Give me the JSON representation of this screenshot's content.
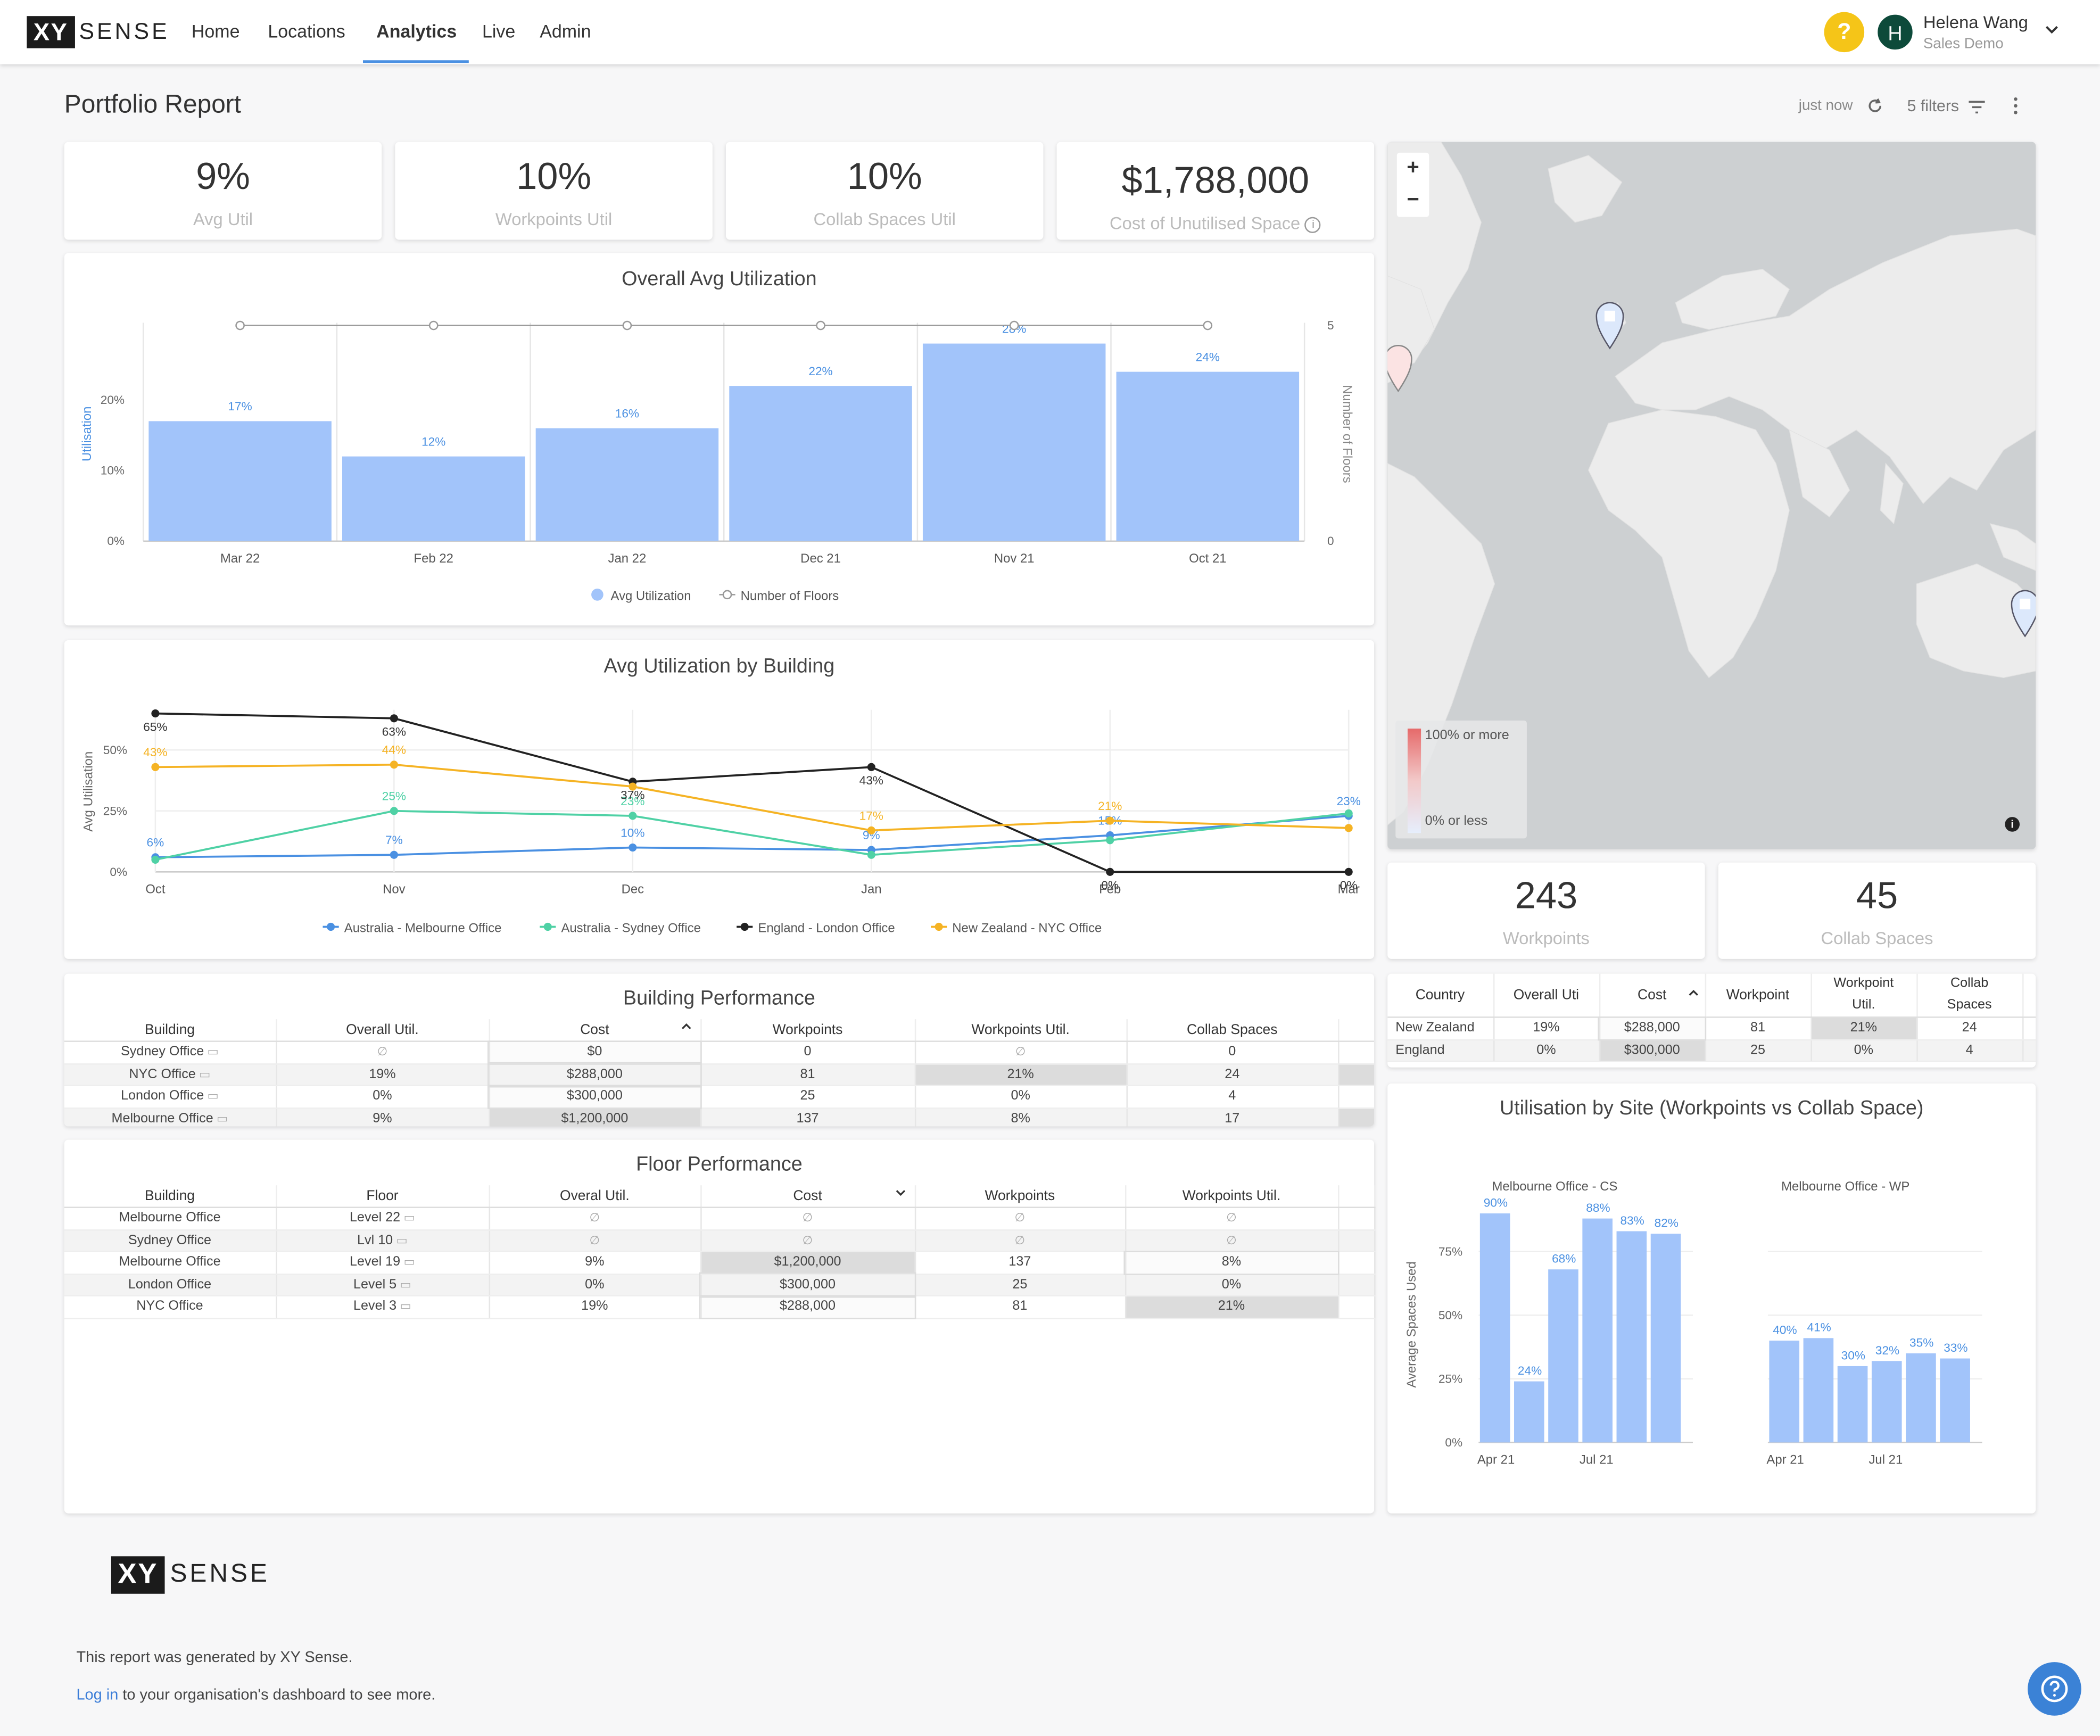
{
  "app": {
    "logo_mark": "XY",
    "logo_word": "SENSE"
  },
  "nav": {
    "items": [
      "Home",
      "Locations",
      "Analytics",
      "Live",
      "Admin"
    ],
    "active": "Analytics"
  },
  "user": {
    "help": "?",
    "initial": "H",
    "name": "Helena Wang",
    "org": "Sales Demo"
  },
  "page": {
    "title": "Portfolio Report",
    "updated": "just now",
    "filters_label": "5 filters"
  },
  "kpis": [
    {
      "value": "9%",
      "label": "Avg Util"
    },
    {
      "value": "10%",
      "label": "Workpoints Util"
    },
    {
      "value": "10%",
      "label": "Collab Spaces Util"
    },
    {
      "value": "$1,788,000",
      "label": "Cost of Unutilised Space"
    }
  ],
  "map": {
    "zoom_in": "+",
    "zoom_out": "−",
    "legend_high": "100% or more",
    "legend_low": "0% or less",
    "info": "i"
  },
  "counts": [
    {
      "value": "243",
      "label": "Workpoints"
    },
    {
      "value": "45",
      "label": "Collab Spaces"
    }
  ],
  "charts": {
    "overall": {
      "title": "Overall Avg Utilization"
    },
    "by_building": {
      "title": "Avg Utilization by Building"
    },
    "by_site": {
      "title": "Utilisation by Site (Workpoints vs Collab Space)"
    }
  },
  "chart_data": [
    {
      "type": "bar",
      "title": "Overall Avg Utilization",
      "categories": [
        "Mar 22",
        "Feb 22",
        "Jan 22",
        "Dec 21",
        "Nov 21",
        "Oct 21"
      ],
      "series": [
        {
          "name": "Avg Utilization",
          "values": [
            17,
            12,
            16,
            22,
            28,
            24
          ],
          "color": "#a2c4fa"
        },
        {
          "name": "Number of Floors",
          "values": [
            5,
            5,
            5,
            5,
            5,
            5
          ],
          "type": "line",
          "color": "#999999"
        }
      ],
      "ylabel": "Utilisation",
      "y2label": "Number of Floors",
      "yticks": [
        "0%",
        "10%",
        "20%"
      ],
      "y2ticks": [
        "0",
        "5"
      ],
      "ylim": [
        0,
        30
      ],
      "y2lim": [
        0,
        5
      ],
      "legend": "bottom"
    },
    {
      "type": "line",
      "title": "Avg Utilization by Building",
      "categories": [
        "Oct",
        "Nov",
        "Dec",
        "Jan",
        "Feb",
        "Mar"
      ],
      "ylabel": "Avg Utilisation",
      "yticks": [
        "0%",
        "25%",
        "50%"
      ],
      "ylim": [
        0,
        66
      ],
      "series": [
        {
          "name": "Australia - Melbourne Office",
          "color": "#4a90e2",
          "values": [
            6,
            7,
            10,
            9,
            15,
            23
          ],
          "labels": [
            "6%",
            "7%",
            "10%",
            "9%",
            "15%",
            "23%"
          ]
        },
        {
          "name": "Australia - Sydney Office",
          "color": "#4fd1a5",
          "values": [
            5,
            25,
            23,
            7,
            13,
            24
          ],
          "labels": [
            "",
            "25%",
            "23%",
            "",
            "",
            ""
          ]
        },
        {
          "name": "England - London Office",
          "color": "#222222",
          "values": [
            65,
            63,
            37,
            43,
            0,
            0
          ],
          "labels": [
            "65%",
            "63%",
            "37%",
            "43%",
            "0%",
            "0%"
          ]
        },
        {
          "name": "New Zealand - NYC Office",
          "color": "#f5b324",
          "values": [
            43,
            44,
            35,
            17,
            21,
            18
          ],
          "labels": [
            "43%",
            "44%",
            "",
            "17%",
            "21%",
            ""
          ]
        }
      ],
      "legend": "bottom"
    },
    {
      "type": "bar",
      "title": "Utilisation by Site (Workpoints vs Collab Space)",
      "ylabel": "Average Spaces Used",
      "yticks": [
        "0%",
        "25%",
        "50%",
        "75%"
      ],
      "ylim": [
        0,
        95
      ],
      "panels": [
        {
          "name": "Melbourne Office - CS",
          "values": [
            90,
            24,
            68,
            88,
            83,
            82
          ],
          "xticks": [
            "Apr 21",
            "Jul 21"
          ]
        },
        {
          "name": "Melbourne Office - WP",
          "values": [
            40,
            41,
            30,
            32,
            35,
            33
          ],
          "xticks": [
            "Apr 21",
            "Jul 21"
          ]
        }
      ]
    }
  ],
  "building_table": {
    "title": "Building Performance",
    "headers": [
      "Building",
      "Overall Util.",
      "Cost",
      "Workpoints",
      "Workpoints Util.",
      "Collab Spaces"
    ],
    "rows": [
      [
        "Sydney Office",
        "∅",
        "$0",
        "0",
        "∅",
        "0"
      ],
      [
        "NYC Office",
        "19%",
        "$288,000",
        "81",
        "21%",
        "24"
      ],
      [
        "London Office",
        "0%",
        "$300,000",
        "25",
        "0%",
        "4"
      ],
      [
        "Melbourne Office",
        "9%",
        "$1,200,000",
        "137",
        "8%",
        "17"
      ]
    ]
  },
  "floor_table": {
    "title": "Floor Performance",
    "headers": [
      "Building",
      "Floor",
      "Overal Util.",
      "Cost",
      "Workpoints",
      "Workpoints Util."
    ],
    "rows": [
      [
        "Melbourne Office",
        "Level 22",
        "∅",
        "∅",
        "∅",
        "∅"
      ],
      [
        "Sydney Office",
        "Lvl 10",
        "∅",
        "∅",
        "∅",
        "∅"
      ],
      [
        "Melbourne Office",
        "Level 19",
        "9%",
        "$1,200,000",
        "137",
        "8%"
      ],
      [
        "London Office",
        "Level 5",
        "0%",
        "$300,000",
        "25",
        "0%"
      ],
      [
        "NYC Office",
        "Level 3",
        "19%",
        "$288,000",
        "81",
        "21%"
      ]
    ]
  },
  "country_table": {
    "headers": [
      "Country",
      "Overall Uti",
      "Cost",
      "Workpoint",
      "Workpoint Util.",
      "Collab Spaces"
    ],
    "rows": [
      [
        "New Zealand",
        "19%",
        "$288,000",
        "81",
        "21%",
        "24"
      ],
      [
        "England",
        "0%",
        "$300,000",
        "25",
        "0%",
        "4"
      ]
    ]
  },
  "footer": {
    "generated": "This report was generated by XY Sense.",
    "login_link": "Log in",
    "login_rest": " to your organisation's dashboard to see more."
  }
}
